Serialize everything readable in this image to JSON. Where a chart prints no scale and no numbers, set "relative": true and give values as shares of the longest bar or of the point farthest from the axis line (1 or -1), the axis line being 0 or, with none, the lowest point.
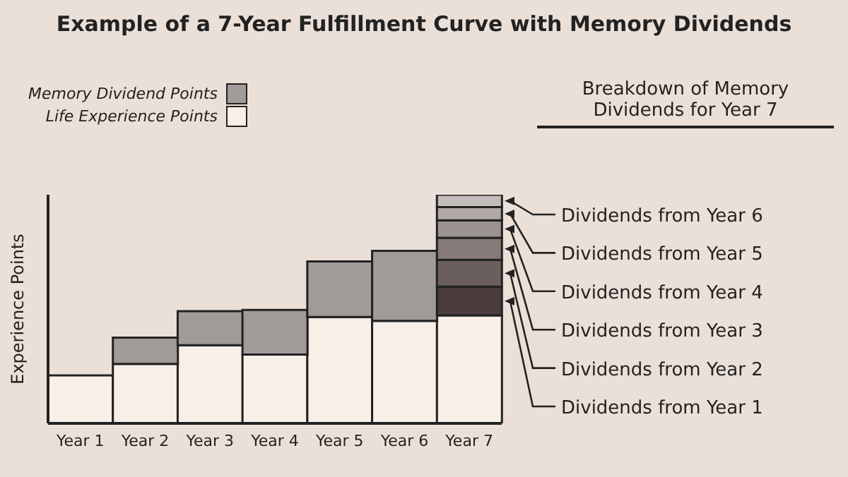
{
  "chart_data": {
    "type": "bar",
    "title": "Example of a 7-Year Fulfillment Curve with Memory Dividends",
    "ylabel": "Experience Points",
    "categories": [
      "Year 1",
      "Year 2",
      "Year 3",
      "Year 4",
      "Year 5",
      "Year 6",
      "Year 7"
    ],
    "stacked": true,
    "relative": true,
    "legend": "top left",
    "grid": false,
    "annotations": [
      "Breakdown of Memory Dividends for Year 7"
    ],
    "series": [
      {
        "name": "Life Experience Points",
        "color": "#f7efe8",
        "values": [
          0.21,
          0.26,
          0.342,
          0.301,
          0.465,
          0.448,
          0.472
        ]
      },
      {
        "name": "Memory Dividend Points",
        "color": "#a09a98",
        "values": [
          null,
          0.115,
          0.149,
          0.195,
          0.243,
          0.307,
          null
        ]
      },
      {
        "name": "Dividends from Year 1",
        "color": "#4a3c3c",
        "values": [
          null,
          null,
          null,
          null,
          null,
          null,
          0.126
        ]
      },
      {
        "name": "Dividends from Year 2",
        "color": "#6b5f5e",
        "values": [
          null,
          null,
          null,
          null,
          null,
          null,
          0.117
        ]
      },
      {
        "name": "Dividends from Year 3",
        "color": "#857a78",
        "values": [
          null,
          null,
          null,
          null,
          null,
          null,
          0.097
        ]
      },
      {
        "name": "Dividends from Year 4",
        "color": "#9c9391",
        "values": [
          null,
          null,
          null,
          null,
          null,
          null,
          0.076
        ]
      },
      {
        "name": "Dividends from Year 5",
        "color": "#b0a8a6",
        "values": [
          null,
          null,
          null,
          null,
          null,
          null,
          0.058
        ]
      },
      {
        "name": "Dividends from Year 6",
        "color": "#c2bcba",
        "values": [
          null,
          null,
          null,
          null,
          null,
          null,
          0.054
        ]
      }
    ]
  }
}
